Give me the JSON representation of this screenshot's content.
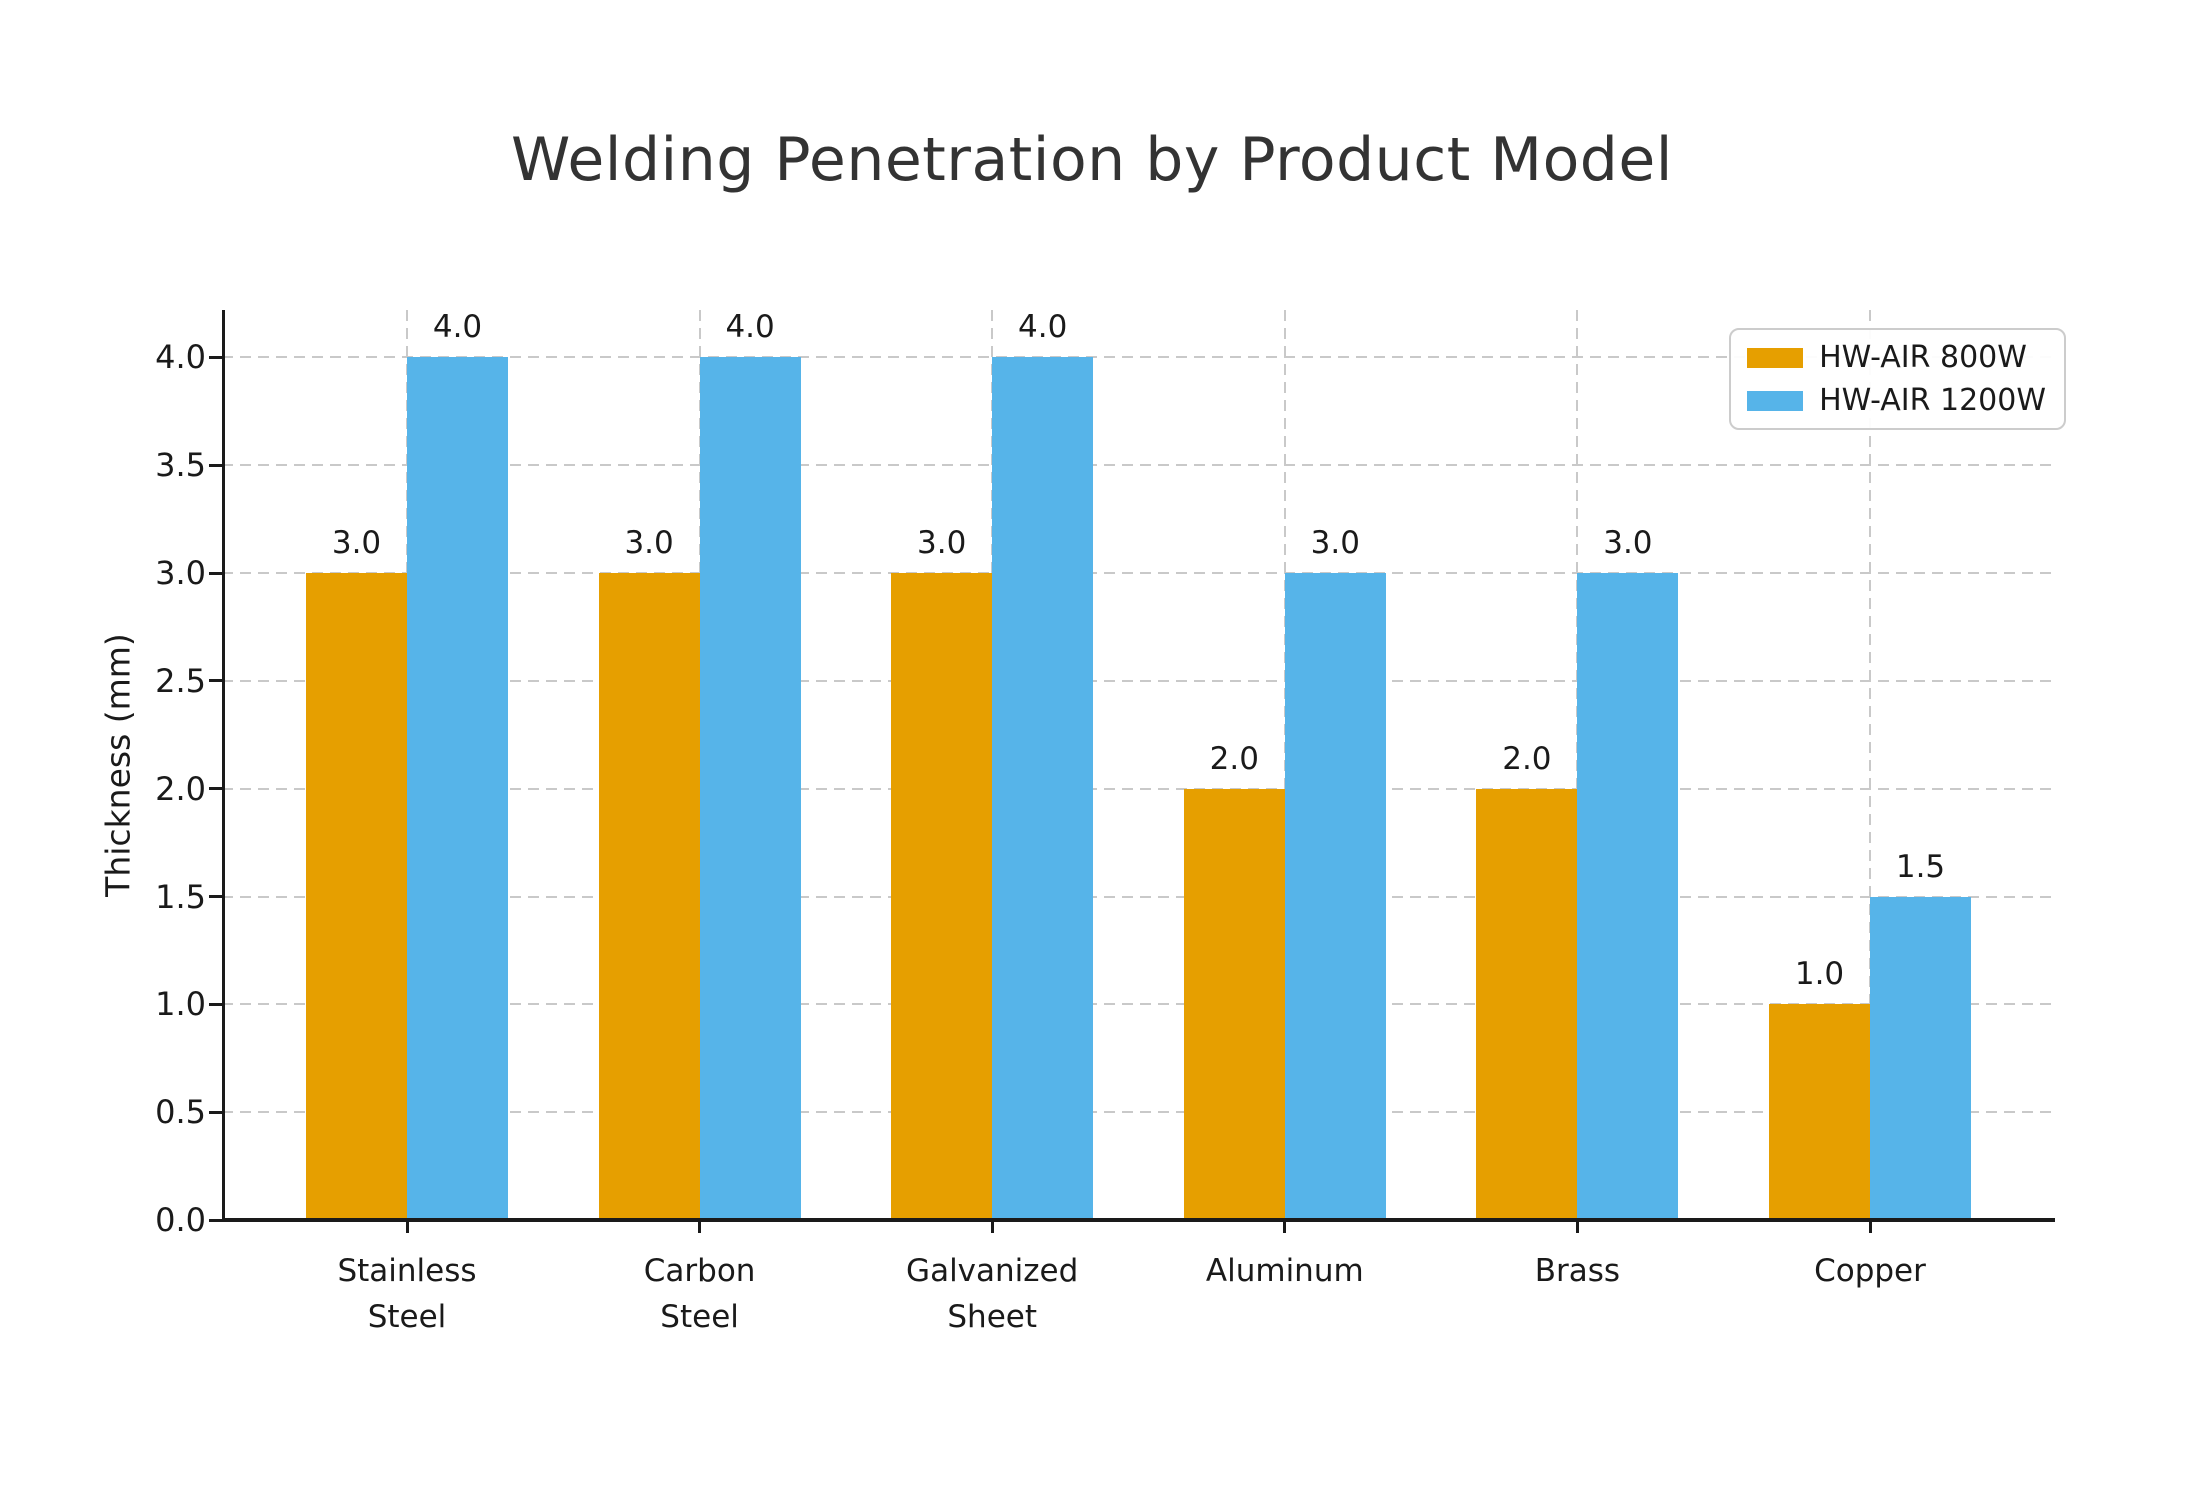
{
  "figure": {
    "background": "#ffffff"
  },
  "chart_data": {
    "type": "bar",
    "title": "Welding Penetration by Product Model",
    "xlabel": "",
    "ylabel": "Thickness (mm)",
    "categories": [
      "Stainless\nSteel",
      "Carbon\nSteel",
      "Galvanized\nSheet",
      "Aluminum",
      "Brass",
      "Copper"
    ],
    "series": [
      {
        "name": "HW-AIR 800W",
        "color": "#E69F00",
        "values": [
          3.0,
          3.0,
          3.0,
          2.0,
          2.0,
          1.0
        ]
      },
      {
        "name": "HW-AIR 1200W",
        "color": "#56B4E9",
        "values": [
          4.0,
          4.0,
          4.0,
          3.0,
          3.0,
          1.5
        ]
      }
    ],
    "bar_value_labels": {
      "HW-AIR 800W": [
        "3.0",
        "3.0",
        "3.0",
        "2.0",
        "2.0",
        "1.0"
      ],
      "HW-AIR 1200W": [
        "4.0",
        "4.0",
        "4.0",
        "3.0",
        "3.0",
        "1.5"
      ]
    },
    "yticks": [
      0.0,
      0.5,
      1.0,
      1.5,
      2.0,
      2.5,
      3.0,
      3.5,
      4.0
    ],
    "ylim": [
      0,
      4.22
    ],
    "grid": {
      "horizontal": true,
      "vertical": true,
      "style": "dashed",
      "color": "#c9c9c9"
    },
    "legend": {
      "position": "upper right",
      "border_color": "#cccccc",
      "background": "#ffffff"
    },
    "axis_color": "#1a1a1a",
    "text_color": "#1a1a1a",
    "title_color": "#333333"
  }
}
